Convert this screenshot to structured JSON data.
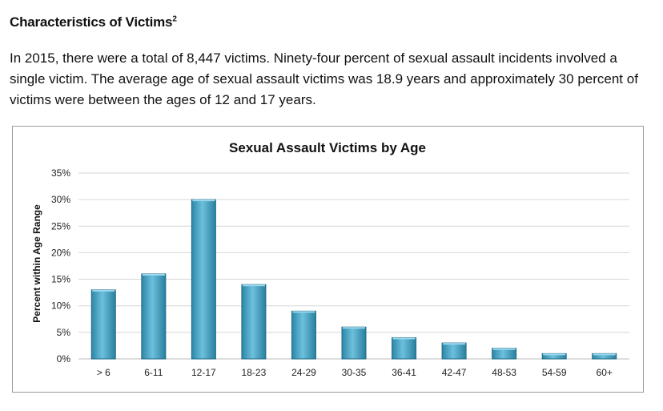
{
  "section": {
    "heading": "Characteristics of Victims",
    "footnote_marker": "2",
    "paragraph": "In 2015, there were a total of 8,447 victims. Ninety-four percent of sexual assault incidents involved a single victim. The average age of sexual assault victims was 18.9 years and approximately 30 percent of victims were between the ages of 12 and 17 years."
  },
  "chart_data": {
    "type": "bar",
    "title": "Sexual Assault Victims by Age",
    "xlabel": "",
    "ylabel": "Percent within Age Range",
    "categories": [
      "> 6",
      "6-11",
      "12-17",
      "18-23",
      "24-29",
      "30-35",
      "36-41",
      "42-47",
      "48-53",
      "54-59",
      "60+"
    ],
    "values": [
      13,
      16,
      30,
      14,
      9,
      6,
      4,
      3,
      2,
      1,
      1
    ],
    "ylim": [
      0,
      35
    ],
    "yticks": [
      0,
      5,
      10,
      15,
      20,
      25,
      30,
      35
    ],
    "ytick_labels": [
      "0%",
      "5%",
      "10%",
      "15%",
      "20%",
      "25%",
      "30%",
      "35%"
    ],
    "grid": true,
    "legend": "none",
    "bar_color": "#4fa9c9",
    "bar_edge_color": "#1f6b86"
  }
}
